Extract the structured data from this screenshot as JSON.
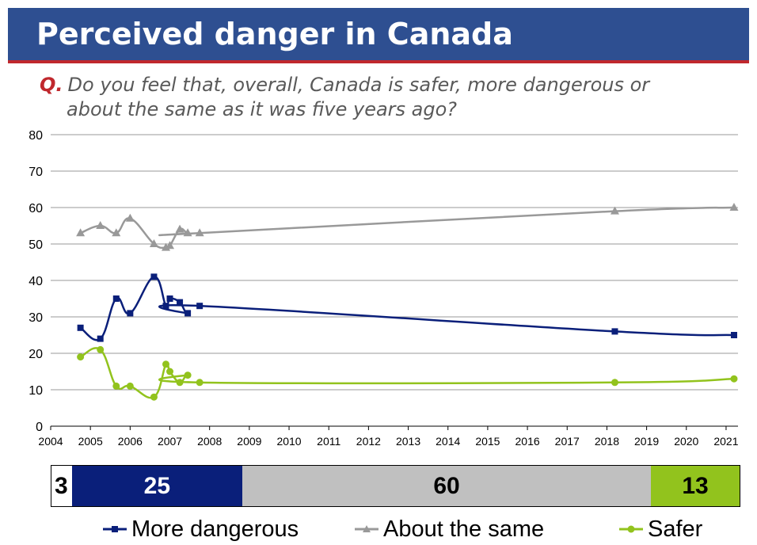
{
  "header": {
    "title": "Perceived danger in Canada"
  },
  "question": {
    "marker": "Q.",
    "line1": "Do you feel that, overall, Canada is safer, more dangerous or",
    "line2": "about the same as it was five years ago?"
  },
  "chart_data": {
    "type": "line",
    "x_ticks": [
      "2004",
      "2005",
      "2006",
      "2007",
      "2008",
      "2009",
      "2010",
      "2011",
      "2012",
      "2013",
      "2014",
      "2015",
      "2016",
      "2017",
      "2018",
      "2019",
      "2020",
      "2021"
    ],
    "y_ticks": [
      "0",
      "10",
      "20",
      "30",
      "40",
      "50",
      "60",
      "70",
      "80"
    ],
    "xlim": [
      2004,
      2021.3
    ],
    "ylim": [
      0,
      80
    ],
    "grid": true,
    "legend_position": "bottom",
    "series": [
      {
        "name": "More dangerous",
        "color": "#0a1f7a",
        "marker": "square",
        "x": [
          2004.75,
          2005.25,
          2005.65,
          2006.0,
          2006.6,
          2006.9,
          2007.0,
          2007.25,
          2007.45,
          2007.75,
          2018.2,
          2021.2
        ],
        "y": [
          27,
          24,
          35,
          31,
          41,
          33,
          35,
          34,
          31,
          33,
          26,
          25
        ]
      },
      {
        "name": "About the same",
        "color": "#999999",
        "marker": "triangle",
        "x": [
          2004.75,
          2005.25,
          2005.65,
          2006.0,
          2006.6,
          2006.9,
          2007.0,
          2007.25,
          2007.45,
          2007.75,
          2018.2,
          2021.2
        ],
        "y": [
          53,
          55,
          53,
          57,
          50,
          49,
          49.5,
          54,
          53,
          53,
          59,
          60
        ]
      },
      {
        "name": "Safer",
        "color": "#92c31d",
        "marker": "circle",
        "x": [
          2004.75,
          2005.25,
          2005.65,
          2006.0,
          2006.6,
          2006.9,
          2007.0,
          2007.25,
          2007.45,
          2007.75,
          2018.2,
          2021.2
        ],
        "y": [
          19,
          21,
          11,
          11,
          8,
          17,
          15,
          12,
          14,
          12,
          12,
          13
        ]
      }
    ]
  },
  "summary_bar": {
    "segments": [
      {
        "key": "dont_know",
        "value": 3,
        "label": "3",
        "color": "#ffffff",
        "text_color": "#000000"
      },
      {
        "key": "more_dangerous",
        "value": 25,
        "label": "25",
        "color": "#0a1f7a",
        "text_color": "#ffffff"
      },
      {
        "key": "about_same",
        "value": 60,
        "label": "60",
        "color": "#c0c0c0",
        "text_color": "#000000"
      },
      {
        "key": "safer",
        "value": 13,
        "label": "13",
        "color": "#92c31d",
        "text_color": "#000000"
      }
    ]
  },
  "legend": {
    "more_dangerous": "More dangerous",
    "about_same": "About the same",
    "safer": "Safer"
  }
}
